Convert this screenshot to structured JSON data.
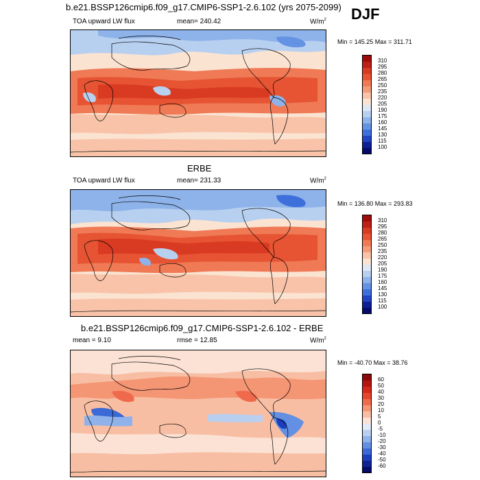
{
  "season": "DJF",
  "panels": [
    {
      "title": "b.e21.BSSP126cmip6.f09_g17.CMIP6-SSP1-2.6.102 (yrs 2075-2099)",
      "left_label": "TOA upward LW flux",
      "center_label": "mean= 240.42",
      "units": "W/m",
      "units_sup": "2",
      "stats": "Min = 145.25 Max = 311.71",
      "levels": [
        "310",
        "295",
        "280",
        "265",
        "250",
        "235",
        "220",
        "205",
        "190",
        "175",
        "160",
        "145",
        "130",
        "115",
        "100"
      ]
    },
    {
      "title": "ERBE",
      "left_label": "TOA upward LW flux",
      "center_label": "mean= 231.33",
      "units": "W/m",
      "units_sup": "2",
      "stats": "Min = 136.80 Max = 293.83",
      "levels": [
        "310",
        "295",
        "280",
        "265",
        "250",
        "235",
        "220",
        "205",
        "190",
        "175",
        "160",
        "145",
        "130",
        "115",
        "100"
      ]
    },
    {
      "title": "b.e21.BSSP126cmip6.f09_g17.CMIP6-SSP1-2.6.102 - ERBE",
      "left_label": "mean =   9.10",
      "center_label": "rmse =  12.85",
      "units": "W/m",
      "units_sup": "2",
      "stats": "Min = -40.70 Max =  38.76",
      "levels": [
        "60",
        "50",
        "40",
        "30",
        "20",
        "10",
        "5",
        "0",
        "-5",
        "-10",
        "-20",
        "-30",
        "-40",
        "-50",
        "-60"
      ]
    }
  ],
  "colors": {
    "flux_scale": [
      "#9e0b0b",
      "#bf1f16",
      "#d93a22",
      "#e65433",
      "#ef7a55",
      "#f49c79",
      "#f8c3a8",
      "#fbe3d2",
      "#dde8f6",
      "#b8d0f0",
      "#8eb3ea",
      "#6493e3",
      "#3f6fdb",
      "#2144c4",
      "#0d1f94",
      "#050a6b"
    ],
    "diff_scale": [
      "#8a0a0a",
      "#b5140f",
      "#d5271a",
      "#e6442c",
      "#ef6a4d",
      "#f49574",
      "#f8bea3",
      "#fbe2d4",
      "#e1ebf7",
      "#b9cff0",
      "#8fb2ea",
      "#6390e2",
      "#3b69d6",
      "#1c3fbd",
      "#0d2293",
      "#050b6b"
    ]
  }
}
